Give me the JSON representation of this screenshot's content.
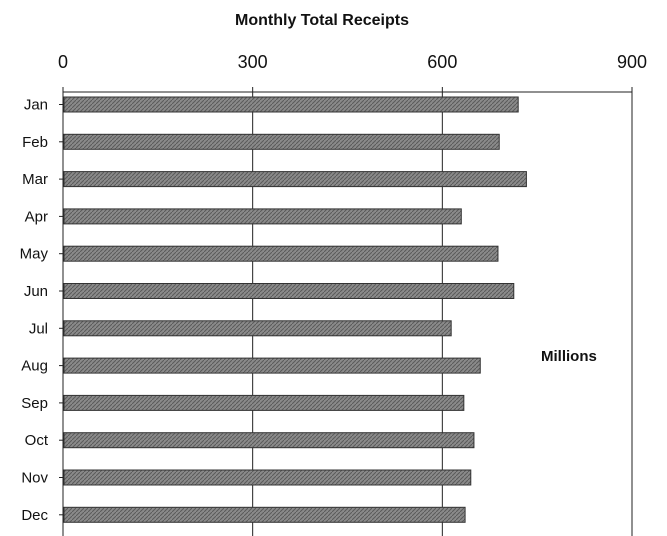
{
  "chart_data": {
    "type": "bar",
    "orientation": "horizontal",
    "title": "Monthly Total Receipts",
    "ylabel": "Millions",
    "xlim": [
      0,
      900
    ],
    "x_ticks": [
      "0",
      "300",
      "600",
      "900"
    ],
    "categories": [
      "Jan",
      "Feb",
      "Mar",
      "Apr",
      "May",
      "Jun",
      "Jul",
      "Aug",
      "Sep",
      "Oct",
      "Nov",
      "Dec"
    ],
    "values": [
      720,
      690,
      733,
      630,
      688,
      713,
      614,
      660,
      634,
      650,
      645,
      636
    ],
    "grid": true,
    "bar_color": "#7a7a7a"
  }
}
